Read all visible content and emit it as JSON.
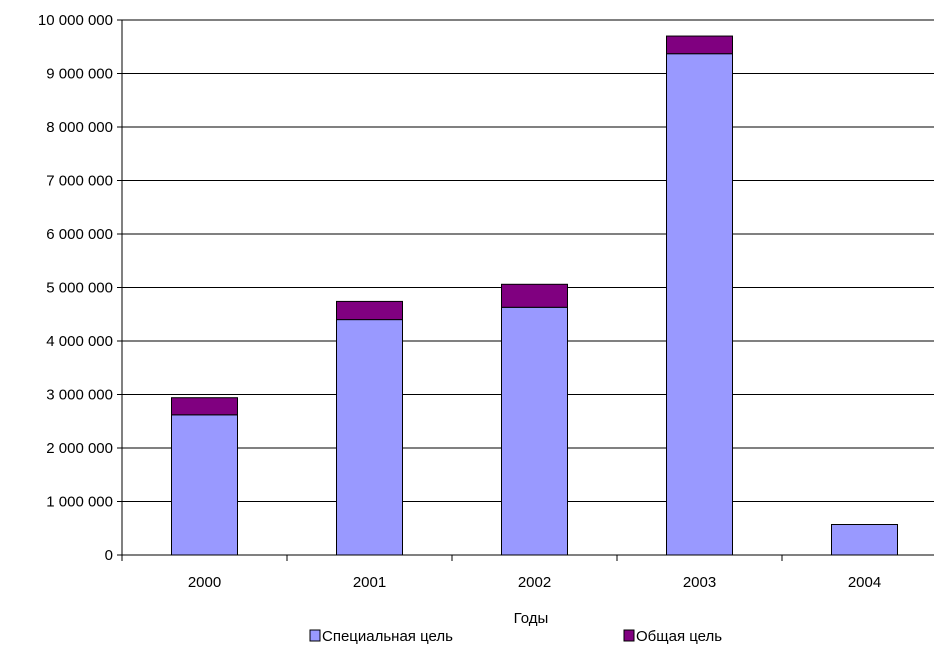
{
  "chart_data": {
    "type": "bar",
    "stacked": true,
    "categories": [
      "2000",
      "2001",
      "2002",
      "2003",
      "2004"
    ],
    "series": [
      {
        "name": "Специальная цель",
        "values": [
          2620000,
          4400000,
          4630000,
          9370000,
          570000
        ],
        "color": "#9999ff"
      },
      {
        "name": "Общая цель",
        "values": [
          320000,
          340000,
          430000,
          330000,
          0
        ],
        "color": "#800080"
      }
    ],
    "title": "",
    "xlabel": "Годы",
    "ylabel": "",
    "ylim": [
      0,
      10000000
    ],
    "yticks": [
      0,
      1000000,
      2000000,
      3000000,
      4000000,
      5000000,
      6000000,
      7000000,
      8000000,
      9000000,
      10000000
    ],
    "ytick_labels": [
      "0",
      "1 000 000",
      "2 000 000",
      "3 000 000",
      "4 000 000",
      "5 000 000",
      "6 000 000",
      "7 000 000",
      "8 000 000",
      "9 000 000",
      "10 000 000"
    ],
    "grid": true,
    "legend": "bottom"
  }
}
